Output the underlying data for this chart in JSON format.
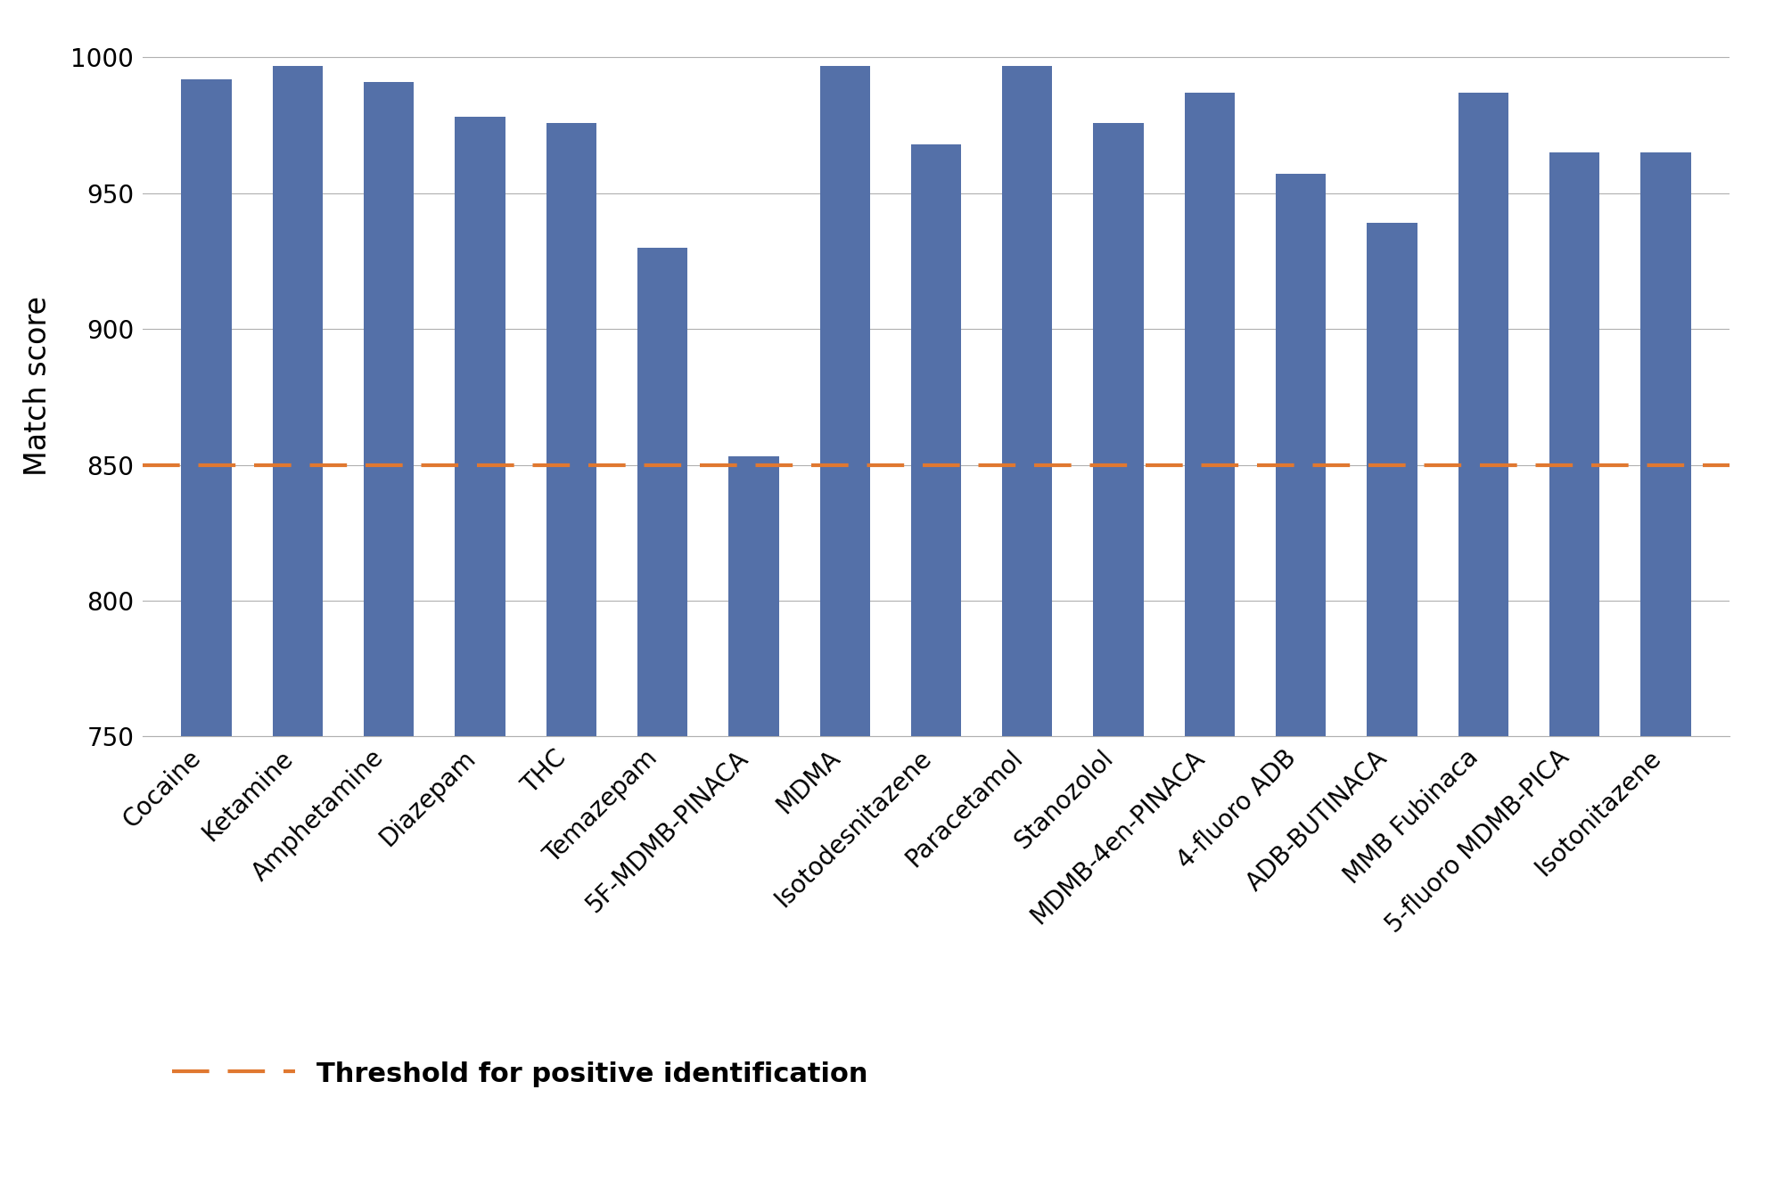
{
  "categories": [
    "Cocaine",
    "Ketamine",
    "Amphetamine",
    "Diazepam",
    "THC",
    "Temazepam",
    "5F-MDMB-PINACA",
    "MDMA",
    "Isotodesnitazene",
    "Paracetamol",
    "Stanozolol",
    "MDMB-4en-PINACA",
    "4-fluoro ADB",
    "ADB-BUTINACA",
    "MMB Fubinaca",
    "5-fluoro MDMB-PICA",
    "Isotonitazene"
  ],
  "values": [
    992,
    997,
    991,
    978,
    976,
    930,
    853,
    997,
    968,
    997,
    976,
    987,
    957,
    939,
    987,
    965,
    965
  ],
  "bar_color": "#5470a8",
  "threshold": 850,
  "threshold_color": "#e07830",
  "threshold_label": "Threshold for positive identification",
  "ylabel": "Match score",
  "ylim_min": 750,
  "ylim_max": 1008,
  "yticks": [
    750,
    800,
    850,
    900,
    950,
    1000
  ],
  "background_color": "#ffffff",
  "grid_color": "#b0b0b0",
  "axis_label_fontsize": 24,
  "tick_fontsize": 20,
  "xtick_rotation": 45,
  "legend_fontsize": 22,
  "bar_width": 0.55
}
